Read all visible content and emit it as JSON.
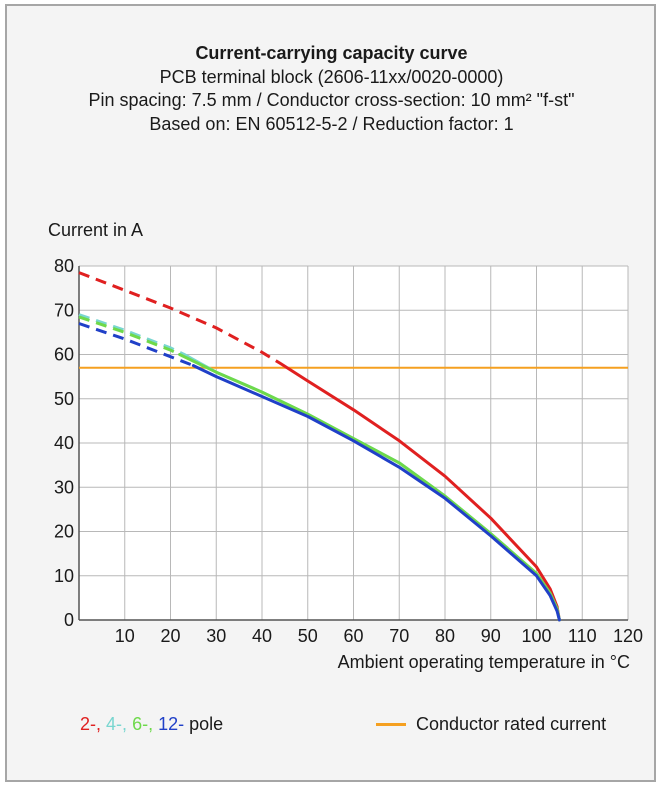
{
  "chart_data": {
    "type": "line",
    "title": "Current-carrying capacity curve",
    "subtitle_lines": [
      "PCB terminal block (2606-11xx/0020-0000)",
      "Pin spacing: 7.5 mm / Conductor cross-section: 10 mm² \"f-st\"",
      "Based on: EN 60512-5-2 / Reduction factor: 1"
    ],
    "xlabel": "Ambient operating temperature in °C",
    "ylabel": "Current in A",
    "xlim": [
      0,
      120
    ],
    "ylim": [
      0,
      80
    ],
    "xticks": [
      "10",
      "20",
      "30",
      "40",
      "50",
      "60",
      "70",
      "80",
      "90",
      "100",
      "110",
      "120"
    ],
    "yticks": [
      "0",
      "10",
      "20",
      "30",
      "40",
      "50",
      "60",
      "70",
      "80"
    ],
    "grid": true,
    "series": [
      {
        "name": "2-",
        "color": "#e02020",
        "dashed_x": [
          0,
          10,
          20,
          30,
          40,
          44
        ],
        "dashed_y": [
          78.5,
          74.5,
          70.5,
          66,
          60.5,
          58
        ],
        "solid_x": [
          44,
          50,
          60,
          70,
          80,
          90,
          100,
          103,
          104.5,
          105
        ],
        "solid_y": [
          58,
          54,
          47.5,
          40.5,
          32.5,
          23,
          12,
          7,
          3,
          0
        ]
      },
      {
        "name": "4-",
        "color": "#79d6d0",
        "dashed_x": [
          0,
          10,
          20,
          23
        ],
        "dashed_y": [
          69,
          65.5,
          61.5,
          60
        ],
        "solid_x": [
          23,
          30,
          40,
          50,
          60,
          70,
          80,
          90,
          100,
          103,
          104.5,
          105
        ],
        "solid_y": [
          60,
          56,
          51.5,
          46.5,
          41,
          35.5,
          28,
          19.5,
          10.5,
          6,
          2.5,
          0
        ]
      },
      {
        "name": "6-",
        "color": "#6ed94a",
        "dashed_x": [
          0,
          10,
          20,
          22
        ],
        "dashed_y": [
          68.5,
          65,
          61,
          60
        ],
        "solid_x": [
          22,
          30,
          40,
          50,
          60,
          70,
          80,
          90,
          100,
          103,
          104.5,
          105
        ],
        "solid_y": [
          60,
          56,
          51.5,
          46.5,
          41,
          35.5,
          28,
          19.5,
          10.5,
          6,
          2.5,
          0
        ]
      },
      {
        "name": "12-",
        "color": "#2040c8",
        "dashed_x": [
          0,
          10,
          20,
          25
        ],
        "dashed_y": [
          67,
          63.5,
          59.5,
          57.5
        ],
        "solid_x": [
          25,
          30,
          40,
          50,
          60,
          70,
          80,
          90,
          100,
          103,
          104.5,
          105
        ],
        "solid_y": [
          57.5,
          55,
          50.5,
          46,
          40.5,
          34.5,
          27.5,
          19,
          10,
          5.5,
          2,
          0
        ]
      }
    ],
    "reference_line": {
      "name": "Conductor rated current",
      "y": 57,
      "color": "#f5a020"
    },
    "legend": {
      "placement": "bottom",
      "pole_items": [
        {
          "text": "2-,",
          "color": "#e02020"
        },
        {
          "text": "4-,",
          "color": "#79d6d0"
        },
        {
          "text": "6-,",
          "color": "#6ed94a"
        },
        {
          "text": "12-",
          "color": "#2040c8"
        },
        {
          "text": "pole",
          "color": "#1a1a1a"
        }
      ],
      "rated_text": "Conductor rated current"
    }
  }
}
